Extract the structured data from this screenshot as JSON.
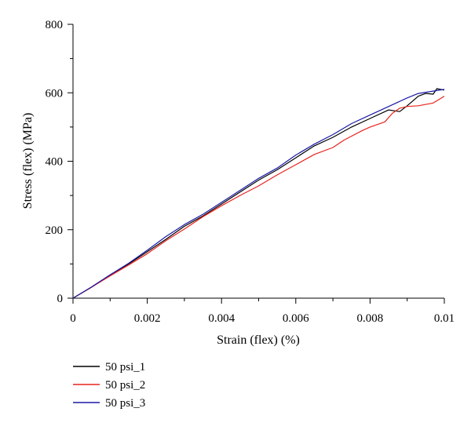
{
  "chart_data": {
    "type": "line",
    "title": "",
    "xlabel": "Strain (flex) (%)",
    "ylabel": "Stress (flex) (MPa)",
    "xlim": [
      0,
      0.01
    ],
    "ylim": [
      0,
      800
    ],
    "x_ticks": [
      0,
      0.002,
      0.004,
      0.006,
      0.008,
      0.01
    ],
    "x_tick_labels": [
      "0",
      "0.002",
      "0.004",
      "0.006",
      "0.008",
      "0.01"
    ],
    "y_ticks": [
      0,
      200,
      400,
      600,
      800
    ],
    "y_tick_labels": [
      "0",
      "200",
      "400",
      "600",
      "800"
    ],
    "grid": false,
    "legend_position": "bottom-left, below plot",
    "series": [
      {
        "name": "50 psi_1",
        "color": "#000000",
        "points": [
          [
            0,
            0
          ],
          [
            0.0005,
            32
          ],
          [
            0.001,
            68
          ],
          [
            0.0015,
            100
          ],
          [
            0.002,
            136
          ],
          [
            0.0025,
            172
          ],
          [
            0.003,
            210
          ],
          [
            0.0035,
            240
          ],
          [
            0.004,
            275
          ],
          [
            0.0045,
            310
          ],
          [
            0.005,
            345
          ],
          [
            0.0055,
            375
          ],
          [
            0.006,
            410
          ],
          [
            0.0065,
            445
          ],
          [
            0.007,
            470
          ],
          [
            0.0075,
            500
          ],
          [
            0.008,
            525
          ],
          [
            0.0085,
            550
          ],
          [
            0.0088,
            545
          ],
          [
            0.009,
            562
          ],
          [
            0.0093,
            590
          ],
          [
            0.0095,
            598
          ],
          [
            0.0097,
            596
          ],
          [
            0.0098,
            612
          ],
          [
            0.01,
            608
          ]
        ]
      },
      {
        "name": "50 psi_2",
        "color": "#e8231d",
        "points": [
          [
            0,
            0
          ],
          [
            0.0005,
            32
          ],
          [
            0.001,
            65
          ],
          [
            0.0015,
            97
          ],
          [
            0.002,
            130
          ],
          [
            0.0025,
            168
          ],
          [
            0.003,
            202
          ],
          [
            0.0035,
            238
          ],
          [
            0.004,
            270
          ],
          [
            0.0045,
            300
          ],
          [
            0.005,
            328
          ],
          [
            0.0055,
            360
          ],
          [
            0.006,
            390
          ],
          [
            0.0065,
            420
          ],
          [
            0.007,
            440
          ],
          [
            0.0073,
            462
          ],
          [
            0.0078,
            490
          ],
          [
            0.008,
            500
          ],
          [
            0.0084,
            515
          ],
          [
            0.0086,
            540
          ],
          [
            0.0088,
            555
          ],
          [
            0.009,
            560
          ],
          [
            0.0093,
            562
          ],
          [
            0.0097,
            570
          ],
          [
            0.01,
            590
          ]
        ]
      },
      {
        "name": "50 psi_3",
        "color": "#1a1aa6",
        "points": [
          [
            0,
            0
          ],
          [
            0.0005,
            33
          ],
          [
            0.001,
            68
          ],
          [
            0.0015,
            102
          ],
          [
            0.002,
            140
          ],
          [
            0.0025,
            180
          ],
          [
            0.003,
            215
          ],
          [
            0.0035,
            245
          ],
          [
            0.004,
            280
          ],
          [
            0.0045,
            315
          ],
          [
            0.005,
            350
          ],
          [
            0.0055,
            380
          ],
          [
            0.006,
            418
          ],
          [
            0.0065,
            450
          ],
          [
            0.007,
            478
          ],
          [
            0.0075,
            510
          ],
          [
            0.008,
            535
          ],
          [
            0.0085,
            560
          ],
          [
            0.009,
            585
          ],
          [
            0.0093,
            598
          ],
          [
            0.0097,
            605
          ],
          [
            0.01,
            610
          ]
        ]
      }
    ]
  }
}
